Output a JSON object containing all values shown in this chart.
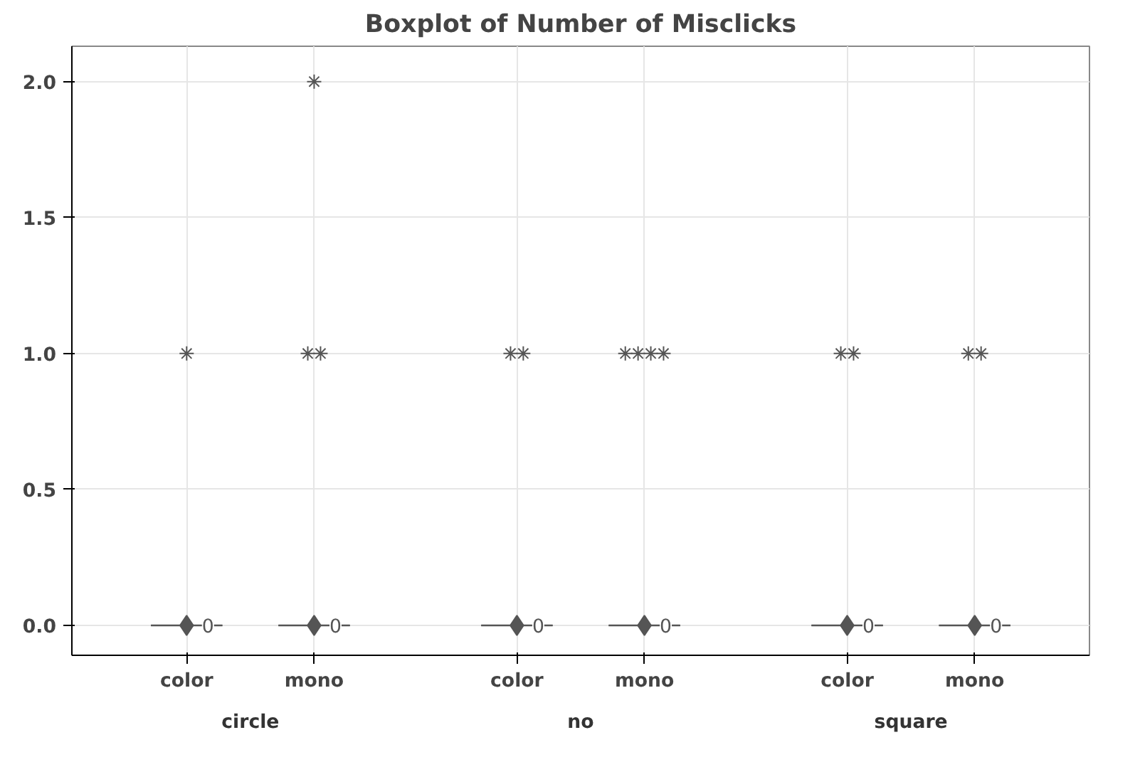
{
  "chart_data": {
    "type": "box",
    "title": "Boxplot of Number of Misclicks",
    "categories": [
      "color",
      "mono",
      "color",
      "mono",
      "color",
      "mono"
    ],
    "boxes": [
      {
        "low": 0,
        "q1": 0,
        "median": 0,
        "q3": 0,
        "high": 0,
        "mean": 0,
        "outliers": [
          1
        ]
      },
      {
        "low": 0,
        "q1": 0,
        "median": 0,
        "q3": 0,
        "high": 0,
        "mean": 0,
        "outliers": [
          1,
          1,
          2
        ]
      },
      {
        "low": 0,
        "q1": 0,
        "median": 0,
        "q3": 0,
        "high": 0,
        "mean": 0,
        "outliers": [
          1,
          1
        ]
      },
      {
        "low": 0,
        "q1": 0,
        "median": 0,
        "q3": 0,
        "high": 0,
        "mean": 0,
        "outliers": [
          1,
          1,
          1,
          1
        ]
      },
      {
        "low": 0,
        "q1": 0,
        "median": 0,
        "q3": 0,
        "high": 0,
        "mean": 0,
        "outliers": [
          1,
          1
        ]
      },
      {
        "low": 0,
        "q1": 0,
        "median": 0,
        "q3": 0,
        "high": 0,
        "mean": 0,
        "outliers": [
          1,
          1
        ]
      }
    ],
    "value_labels": [
      "0",
      "0",
      "0",
      "0",
      "0",
      "0"
    ],
    "annotations": [
      "circle",
      "no",
      "square"
    ],
    "color": "#555555",
    "ylim": [
      -0.11,
      2.13
    ],
    "yticks": [
      {
        "value": 0,
        "label": "0.0"
      },
      {
        "value": 0.5,
        "label": "0.5"
      },
      {
        "value": 1,
        "label": "1.0"
      },
      {
        "value": 1.5,
        "label": "1.5"
      },
      {
        "value": 2,
        "label": "2.0"
      }
    ],
    "grid": true,
    "marker": "diamond"
  }
}
